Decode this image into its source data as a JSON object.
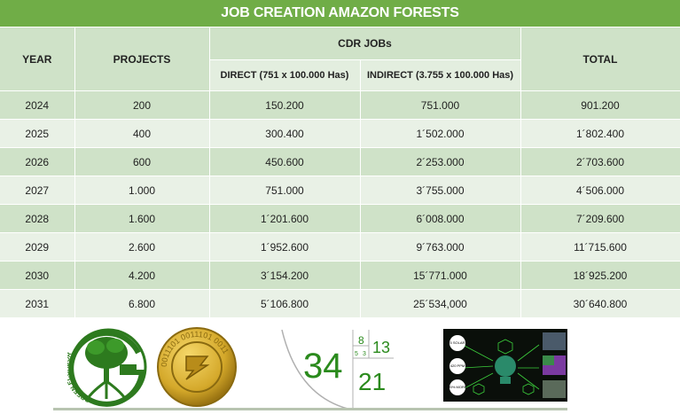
{
  "title": "JOB CREATION AMAZON FORESTS",
  "headers": {
    "year": "YEAR",
    "projects": "PROJECTS",
    "group": "CDR JOBs",
    "direct": "DIRECT (751 x 100.000 Has)",
    "indirect": "INDIRECT (3.755 x 100.000 Has)",
    "total": "TOTAL"
  },
  "rows": [
    {
      "year": "2024",
      "projects": "200",
      "direct": "150.200",
      "indirect": "751.000",
      "total": "901.200"
    },
    {
      "year": "2025",
      "projects": "400",
      "direct": "300.400",
      "indirect": "1´502.000",
      "total": "1´802.400"
    },
    {
      "year": "2026",
      "projects": "600",
      "direct": "450.600",
      "indirect": "2´253.000",
      "total": "2´703.600"
    },
    {
      "year": "2027",
      "projects": "1.000",
      "direct": "751.000",
      "indirect": "3´755.000",
      "total": "4´506.000"
    },
    {
      "year": "2028",
      "projects": "1.600",
      "direct": "1´201.600",
      "indirect": "6´008.000",
      "total": "7´209.600"
    },
    {
      "year": "2029",
      "projects": "2.600",
      "direct": "1´952.600",
      "indirect": "9´763.000",
      "total": "11´715.600"
    },
    {
      "year": "2030",
      "projects": "4.200",
      "direct": "3´154.200",
      "indirect": "15´771.000",
      "total": "18´925.200"
    },
    {
      "year": "2031",
      "projects": "6.800",
      "direct": "5´106.800",
      "indirect": "25´534,000",
      "total": "30´640.800"
    }
  ],
  "logos": {
    "green_ecuador": {
      "text": "GREEN ECUADOR",
      "colors": [
        "#2d7a1e",
        "#ffffff"
      ]
    },
    "coin": {
      "text": "0011101 0011101 0011",
      "colors": [
        "#c9a227",
        "#8a6a10"
      ]
    },
    "fibonacci": {
      "n1": "34",
      "n2": "8",
      "n3": "13",
      "n4": "21",
      "n5": "5",
      "n6": "3",
      "color": "#2a8a1c"
    },
    "tech_panel": {
      "label1": "5 SOLAR",
      "label2": "420 PPM",
      "label3": "20% MORE"
    }
  }
}
